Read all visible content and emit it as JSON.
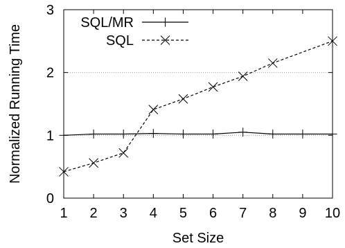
{
  "chart_data": {
    "type": "line",
    "xlabel": "Set Size",
    "ylabel": "Normalized Running Time",
    "x": [
      1,
      2,
      3,
      4,
      5,
      6,
      7,
      8,
      9,
      10
    ],
    "xlim": [
      1,
      10
    ],
    "ylim": [
      0,
      3
    ],
    "xticks": [
      "1",
      "2",
      "3",
      "4",
      "5",
      "6",
      "7",
      "8",
      "9",
      "10"
    ],
    "yticks": [
      "0",
      "1",
      "2",
      "3"
    ],
    "grid": true,
    "legend_position": "top-left",
    "series": [
      {
        "name": "SQL/MR",
        "marker": "plus",
        "line": "solid",
        "color": "#000000",
        "values": [
          1.0,
          1.02,
          1.02,
          1.03,
          1.02,
          1.02,
          1.05,
          1.02,
          1.02,
          1.02
        ]
      },
      {
        "name": "SQL",
        "marker": "cross",
        "line": "dashed",
        "color": "#000000",
        "values": [
          0.42,
          0.56,
          0.72,
          1.41,
          1.58,
          1.77,
          1.94,
          2.15,
          null,
          2.5
        ]
      }
    ]
  }
}
